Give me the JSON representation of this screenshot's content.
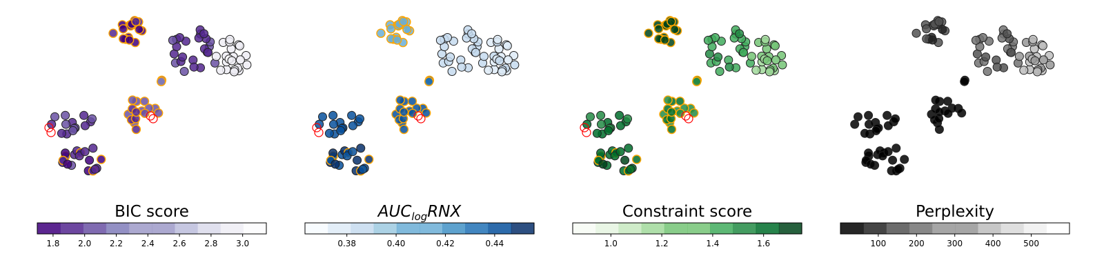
{
  "chart_data": [
    {
      "type": "scatter",
      "title": "BIC score",
      "colormap": "Purples",
      "ticks": [
        1.8,
        2.0,
        2.2,
        2.4,
        2.6,
        2.8,
        3.0
      ],
      "tick_labels": [
        "1.8",
        "2.0",
        "2.2",
        "2.4",
        "2.6",
        "2.8",
        "3.0"
      ],
      "range": [
        1.7,
        3.15
      ],
      "bins": 10,
      "reverse": true,
      "highlight_orange": "#FFA500",
      "highlight_red": "#FF0000"
    },
    {
      "type": "scatter",
      "title_main": "AUC",
      "title_sub": "log",
      "title_suffix": "RNX",
      "colormap": "Blues",
      "ticks": [
        0.38,
        0.4,
        0.42,
        0.44
      ],
      "tick_labels": [
        "0.38",
        "0.40",
        "0.42",
        "0.44"
      ],
      "range": [
        0.363,
        0.456
      ],
      "bins": 10,
      "reverse": false,
      "highlight_orange": "#FFA500",
      "highlight_red": "#FF0000"
    },
    {
      "type": "scatter",
      "title": "Constraint score",
      "colormap": "Greens",
      "ticks": [
        1.0,
        1.2,
        1.4,
        1.6
      ],
      "tick_labels": [
        "1.0",
        "1.2",
        "1.4",
        "1.6"
      ],
      "range": [
        0.85,
        1.75
      ],
      "bins": 10,
      "reverse": false,
      "highlight_orange": "#FFA500",
      "highlight_red": "#FF0000"
    },
    {
      "type": "scatter",
      "title": "Perplexity",
      "colormap": "Greys",
      "ticks": [
        100,
        200,
        300,
        400,
        500
      ],
      "tick_labels": [
        "100",
        "200",
        "300",
        "400",
        "500"
      ],
      "range": [
        1,
        600
      ],
      "bins": 10,
      "reverse": true,
      "highlight_orange": "",
      "highlight_red": ""
    }
  ],
  "palettes": {
    "Purples": [
      "#fcfbfd",
      "#efedf5",
      "#dadaeb",
      "#bcbddc",
      "#9e9ac8",
      "#807dba",
      "#6a51a3",
      "#54278f",
      "#3f007d"
    ],
    "Blues": [
      "#f7fbff",
      "#deebf7",
      "#c6dbef",
      "#9ecae1",
      "#6baed6",
      "#4292c6",
      "#2171b5",
      "#08519c",
      "#08306b"
    ],
    "Greens": [
      "#f7fcf5",
      "#e5f5e0",
      "#c7e9c0",
      "#a1d99b",
      "#74c476",
      "#41ab5d",
      "#238b45",
      "#006d2c",
      "#00441b"
    ],
    "Greys": [
      "#ffffff",
      "#f0f0f0",
      "#d9d9d9",
      "#bdbdbd",
      "#969696",
      "#737373",
      "#525252",
      "#252525",
      "#000000"
    ]
  }
}
